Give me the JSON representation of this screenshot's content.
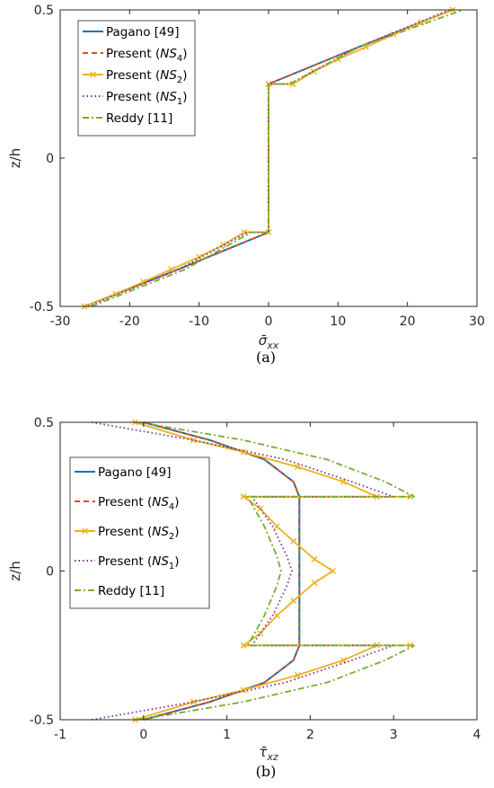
{
  "figure": {
    "sublabels": [
      "(a)",
      "(b)"
    ]
  },
  "chart_data": [
    {
      "type": "line",
      "title": "",
      "xlabel": "σ̄",
      "xlabel_sub": "xx",
      "ylabel": "z/h",
      "xlim": [
        -30,
        30
      ],
      "ylim": [
        -0.5,
        0.5
      ],
      "xticks": [
        "-30",
        "-20",
        "-10",
        "0",
        "10",
        "20",
        "30"
      ],
      "yticks": [
        "-0.5",
        "0",
        "0.5"
      ],
      "grid": false,
      "legend_position": "top-left",
      "series": [
        {
          "name": "Pagano [49]",
          "name_sub": "",
          "name_tail": "",
          "color": "#0072BD",
          "style": "solid",
          "x": [
            -26.5,
            -13,
            0,
            0,
            0,
            0,
            13,
            26.5
          ],
          "y": [
            -0.5,
            -0.375,
            -0.25,
            -0.25,
            0.25,
            0.25,
            0.375,
            0.5
          ]
        },
        {
          "name": "Present (",
          "name_sub": "4",
          "name_tail": ")",
          "name_math": "NS",
          "color": "#D95319",
          "style": "dashed",
          "x": [
            -26.5,
            -13,
            0,
            0,
            0,
            0,
            13,
            26.5
          ],
          "y": [
            -0.5,
            -0.375,
            -0.25,
            -0.25,
            0.25,
            0.25,
            0.375,
            0.5
          ]
        },
        {
          "name": "Present (",
          "name_sub": "2",
          "name_tail": ")",
          "name_math": "NS",
          "color": "#EDB120",
          "style": "solid-x",
          "x": [
            -26.5,
            -22,
            -18,
            -14,
            -10,
            -6.5,
            -3.5,
            0,
            0,
            0,
            3.5,
            6.5,
            10,
            14,
            18,
            22,
            26.5
          ],
          "y": [
            -0.5,
            -0.458,
            -0.417,
            -0.375,
            -0.333,
            -0.292,
            -0.25,
            -0.25,
            0.25,
            0.25,
            0.25,
            0.292,
            0.333,
            0.375,
            0.417,
            0.458,
            0.5
          ]
        },
        {
          "name": "Present (",
          "name_sub": "1",
          "name_tail": ")",
          "name_math": "NS",
          "color": "#7E2F8E",
          "style": "dotted",
          "x": [
            -26,
            -13,
            -3,
            0,
            0,
            0,
            3,
            13,
            26
          ],
          "y": [
            -0.5,
            -0.375,
            -0.25,
            -0.25,
            0.25,
            0.25,
            0.25,
            0.375,
            0.5
          ]
        },
        {
          "name": "Reddy [11]",
          "name_sub": "",
          "name_tail": "",
          "color": "#77AC30",
          "style": "dashdot",
          "x": [
            -25.5,
            -12,
            -2.5,
            0,
            0,
            0,
            3,
            13,
            28
          ],
          "y": [
            -0.5,
            -0.375,
            -0.25,
            -0.25,
            0.25,
            0.25,
            0.25,
            0.375,
            0.5
          ]
        }
      ]
    },
    {
      "type": "line",
      "title": "",
      "xlabel": "τ̄",
      "xlabel_sub": "xz",
      "ylabel": "z/h",
      "xlim": [
        -1,
        4
      ],
      "ylim": [
        -0.5,
        0.5
      ],
      "xticks": [
        "-1",
        "0",
        "1",
        "2",
        "3",
        "4"
      ],
      "yticks": [
        "-0.5",
        "0",
        "0.5"
      ],
      "grid": false,
      "legend_position": "middle-left",
      "series": [
        {
          "name": "Pagano [49]",
          "name_sub": "",
          "name_tail": "",
          "color": "#0072BD",
          "style": "solid",
          "x": [
            0,
            0.8,
            1.45,
            1.8,
            1.87,
            1.87,
            1.87,
            1.87,
            1.87,
            1.8,
            1.45,
            0.8,
            0
          ],
          "y": [
            -0.5,
            -0.44,
            -0.375,
            -0.3,
            -0.25,
            -0.1,
            0,
            0.1,
            0.25,
            0.3,
            0.375,
            0.44,
            0.5
          ]
        },
        {
          "name": "Present (",
          "name_sub": "4",
          "name_tail": ")",
          "name_math": "NS",
          "color": "#D95319",
          "style": "dashed",
          "x": [
            0,
            0.8,
            1.45,
            1.8,
            1.87,
            1.87,
            1.87,
            1.87,
            1.87,
            1.8,
            1.45,
            0.8,
            0
          ],
          "y": [
            -0.5,
            -0.44,
            -0.375,
            -0.3,
            -0.25,
            -0.1,
            0,
            0.1,
            0.25,
            0.3,
            0.375,
            0.44,
            0.5
          ]
        },
        {
          "name": "Present (",
          "name_sub": "2",
          "name_tail": ")",
          "name_math": "NS",
          "color": "#EDB120",
          "style": "solid-x",
          "x": [
            -0.1,
            0.6,
            1.2,
            1.85,
            2.4,
            2.8,
            3.2,
            1.2,
            1.4,
            1.6,
            1.8,
            2.05,
            2.27,
            2.05,
            1.8,
            1.6,
            1.4,
            1.2,
            3.2,
            2.8,
            2.4,
            1.85,
            1.2,
            0.6,
            -0.1
          ],
          "y": [
            -0.5,
            -0.44,
            -0.4,
            -0.35,
            -0.3,
            -0.25,
            -0.25,
            -0.25,
            -0.21,
            -0.15,
            -0.1,
            -0.04,
            0,
            0.04,
            0.1,
            0.15,
            0.21,
            0.25,
            0.25,
            0.25,
            0.3,
            0.35,
            0.4,
            0.44,
            0.5
          ]
        },
        {
          "name": "Present (",
          "name_sub": "1",
          "name_tail": ")",
          "name_math": "NS",
          "color": "#7E2F8E",
          "style": "dotted",
          "x": [
            -0.62,
            0.6,
            1.7,
            2.5,
            3.0,
            1.3,
            1.55,
            1.72,
            1.78,
            1.72,
            1.55,
            1.3,
            3.0,
            2.5,
            1.7,
            0.6,
            -0.62
          ],
          "y": [
            -0.5,
            -0.44,
            -0.375,
            -0.3,
            -0.25,
            -0.25,
            -0.15,
            -0.05,
            0,
            0.05,
            0.15,
            0.25,
            0.25,
            0.3,
            0.375,
            0.44,
            0.5
          ]
        },
        {
          "name": "Reddy [11]",
          "name_sub": "",
          "name_tail": "",
          "color": "#77AC30",
          "style": "dashdot",
          "x": [
            -0.05,
            1.2,
            2.2,
            2.9,
            3.25,
            1.25,
            1.45,
            1.6,
            1.65,
            1.6,
            1.45,
            1.25,
            3.25,
            2.9,
            2.2,
            1.2,
            -0.05
          ],
          "y": [
            -0.5,
            -0.44,
            -0.375,
            -0.3,
            -0.25,
            -0.25,
            -0.15,
            -0.05,
            0,
            0.05,
            0.15,
            0.25,
            0.25,
            0.3,
            0.375,
            0.44,
            0.5
          ]
        }
      ]
    }
  ]
}
